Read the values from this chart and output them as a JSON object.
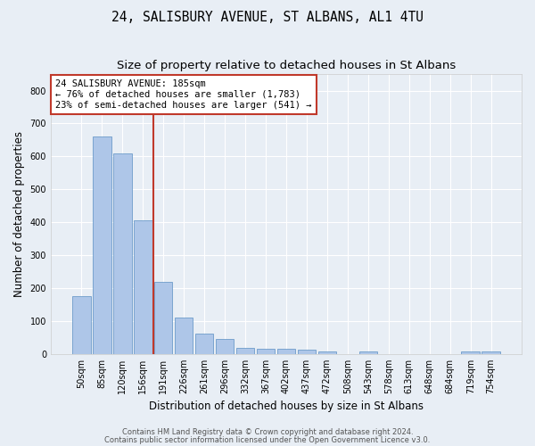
{
  "title": "24, SALISBURY AVENUE, ST ALBANS, AL1 4TU",
  "subtitle": "Size of property relative to detached houses in St Albans",
  "xlabel": "Distribution of detached houses by size in St Albans",
  "ylabel": "Number of detached properties",
  "categories": [
    "50sqm",
    "85sqm",
    "120sqm",
    "156sqm",
    "191sqm",
    "226sqm",
    "261sqm",
    "296sqm",
    "332sqm",
    "367sqm",
    "402sqm",
    "437sqm",
    "472sqm",
    "508sqm",
    "543sqm",
    "578sqm",
    "613sqm",
    "648sqm",
    "684sqm",
    "719sqm",
    "754sqm"
  ],
  "values": [
    175,
    660,
    610,
    405,
    220,
    110,
    63,
    47,
    20,
    16,
    15,
    14,
    8,
    0,
    7,
    0,
    0,
    0,
    0,
    7,
    7
  ],
  "bar_color": "#aec6e8",
  "bar_edge_color": "#5a8fc2",
  "vline_color": "#c0392b",
  "annotation_text": "24 SALISBURY AVENUE: 185sqm\n← 76% of detached houses are smaller (1,783)\n23% of semi-detached houses are larger (541) →",
  "annotation_box_color": "white",
  "annotation_box_edge": "#c0392b",
  "ylim": [
    0,
    850
  ],
  "yticks": [
    0,
    100,
    200,
    300,
    400,
    500,
    600,
    700,
    800
  ],
  "footer1": "Contains HM Land Registry data © Crown copyright and database right 2024.",
  "footer2": "Contains public sector information licensed under the Open Government Licence v3.0.",
  "bg_color": "#e8eef5",
  "grid_color": "white",
  "title_fontsize": 10.5,
  "subtitle_fontsize": 9.5,
  "tick_fontsize": 7,
  "ylabel_fontsize": 8.5,
  "xlabel_fontsize": 8.5,
  "annotation_fontsize": 7.5,
  "footer_fontsize": 6
}
